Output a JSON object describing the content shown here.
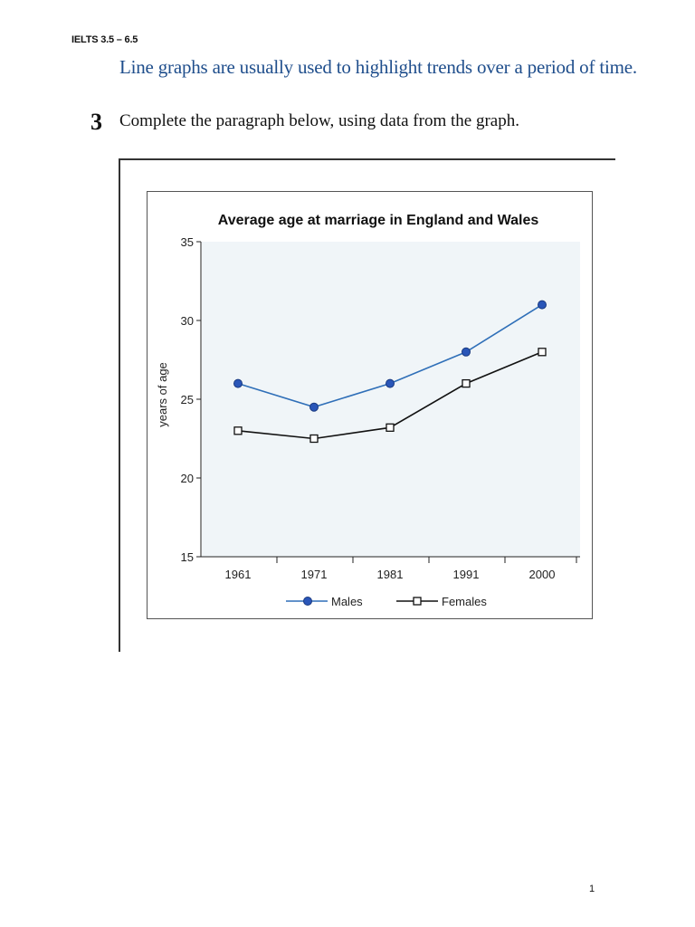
{
  "page": {
    "header": "IELTS 3.5 – 6.5",
    "intro": "Line graphs are usually used to highlight trends over a period of time.",
    "question_number": "3",
    "question_text": "Complete the paragraph below, using data from the graph.",
    "page_number": "1"
  },
  "chart_data": {
    "type": "line",
    "title": "Average age at marriage in England and Wales",
    "xlabel": "",
    "ylabel": "years of age",
    "categories": [
      "1961",
      "1971",
      "1981",
      "1991",
      "2000"
    ],
    "series": [
      {
        "name": "Males",
        "values": [
          26,
          24.5,
          26,
          28,
          31
        ],
        "color": "#2f6fb8",
        "marker": "filled-circle"
      },
      {
        "name": "Females",
        "values": [
          23,
          22.5,
          23.2,
          26,
          28
        ],
        "color": "#111111",
        "marker": "open-square"
      }
    ],
    "ylim": [
      15,
      35
    ],
    "yticks": [
      "15",
      "20",
      "25",
      "30",
      "35"
    ],
    "grid": false,
    "legend": "bottom"
  }
}
